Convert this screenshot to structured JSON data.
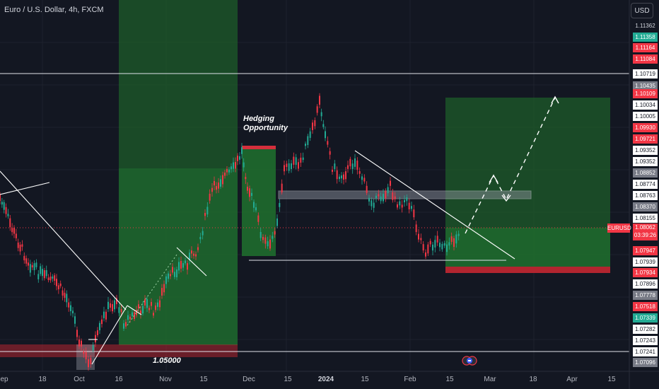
{
  "header": {
    "title": "Euro / U.S. Dollar, 4h, FXCM",
    "currency_button": "USD"
  },
  "annotations": {
    "hedging_line1": "Hedging",
    "hedging_line2": "Opportunity",
    "level_label": "1.05000"
  },
  "price_scale": {
    "labels": [
      {
        "text": "1.11362",
        "bg": "#131722",
        "fg": "#d1d4dc"
      },
      {
        "text": "1.11358",
        "bg": "#22ab94",
        "fg": "#ffffff"
      },
      {
        "text": "1.11164",
        "bg": "#f23645",
        "fg": "#ffffff"
      },
      {
        "text": "1.11084",
        "bg": "#f23645",
        "fg": "#ffffff"
      },
      {
        "text": "1.10719",
        "bg": "#ffffff",
        "fg": "#131722"
      },
      {
        "text": "1.10435",
        "bg": "#787b86",
        "fg": "#ffffff"
      },
      {
        "text": "1.10109",
        "bg": "#f23645",
        "fg": "#ffffff"
      },
      {
        "text": "1.10034",
        "bg": "#ffffff",
        "fg": "#131722"
      },
      {
        "text": "1.10005",
        "bg": "#ffffff",
        "fg": "#131722"
      },
      {
        "text": "1.09930",
        "bg": "#f23645",
        "fg": "#ffffff"
      },
      {
        "text": "1.09721",
        "bg": "#f23645",
        "fg": "#ffffff"
      },
      {
        "text": "1.09352",
        "bg": "#ffffff",
        "fg": "#131722"
      },
      {
        "text": "1.09352",
        "bg": "#ffffff",
        "fg": "#131722"
      },
      {
        "text": "1.08852",
        "bg": "#787b86",
        "fg": "#ffffff"
      },
      {
        "text": "1.08774",
        "bg": "#ffffff",
        "fg": "#131722"
      },
      {
        "text": "1.08763",
        "bg": "#ffffff",
        "fg": "#131722"
      },
      {
        "text": "1.08370",
        "bg": "#787b86",
        "fg": "#ffffff"
      },
      {
        "text": "1.08155",
        "bg": "#ffffff",
        "fg": "#131722"
      },
      {
        "text": "1.07947",
        "bg": "#f23645",
        "fg": "#ffffff"
      },
      {
        "text": "1.07939",
        "bg": "#ffffff",
        "fg": "#131722"
      },
      {
        "text": "1.07934",
        "bg": "#f23645",
        "fg": "#ffffff"
      },
      {
        "text": "1.07896",
        "bg": "#ffffff",
        "fg": "#131722"
      },
      {
        "text": "1.07778",
        "bg": "#787b86",
        "fg": "#ffffff"
      },
      {
        "text": "1.07518",
        "bg": "#f23645",
        "fg": "#ffffff"
      },
      {
        "text": "1.07339",
        "bg": "#22ab94",
        "fg": "#ffffff"
      },
      {
        "text": "1.07282",
        "bg": "#ffffff",
        "fg": "#131722"
      },
      {
        "text": "1.07243",
        "bg": "#ffffff",
        "fg": "#131722"
      },
      {
        "text": "1.07241",
        "bg": "#ffffff",
        "fg": "#131722"
      },
      {
        "text": "1.07096",
        "bg": "#787b86",
        "fg": "#ffffff"
      }
    ],
    "symbol_tag": "EURUSD",
    "last_price": "1.08062",
    "countdown": "03:39:26"
  },
  "time_scale": {
    "labels": [
      "ep",
      "18",
      "Oct",
      "16",
      "Nov",
      "15",
      "Dec",
      "15",
      "2024",
      "15",
      "Feb",
      "15",
      "Mar",
      "18",
      "Apr",
      "15"
    ]
  },
  "colors": {
    "background": "#131722",
    "bull_candle": "#22ab94",
    "bear_candle": "#f23645",
    "long_zone": "#1f6b2e",
    "stop_zone": "#b2252f",
    "accent": "#2962ff"
  }
}
